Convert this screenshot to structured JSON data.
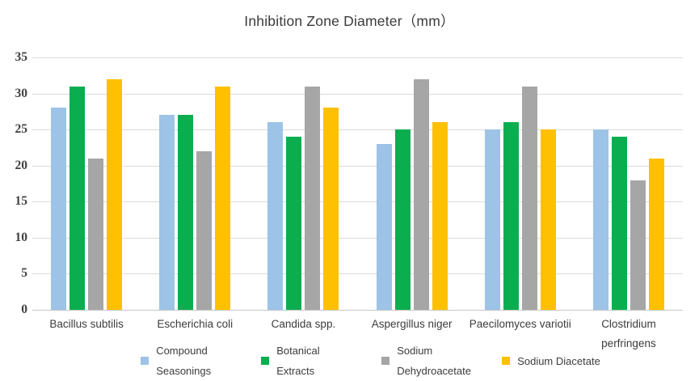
{
  "chart_data": {
    "type": "bar",
    "title": "Inhibition Zone Diameter（mm）",
    "categories": [
      "Bacillus subtilis",
      "Escherichia coli",
      "Candida spp.",
      "Aspergillus niger",
      "Paecilomyces variotii",
      "Clostridium perfringens"
    ],
    "series": [
      {
        "name": "Compound Seasonings",
        "color": "#9DC3E6",
        "values": [
          28,
          27,
          26,
          23,
          25,
          25
        ]
      },
      {
        "name": "Botanical Extracts",
        "color": "#0BAE4F",
        "values": [
          31,
          27,
          24,
          25,
          26,
          24
        ]
      },
      {
        "name": "Sodium Dehydroacetate",
        "color": "#A6A6A6",
        "values": [
          21,
          22,
          31,
          32,
          31,
          18
        ]
      },
      {
        "name": "Sodium Diacetate",
        "color": "#FFC000",
        "values": [
          32,
          31,
          28,
          26,
          25,
          21
        ]
      }
    ],
    "xlabel": "",
    "ylabel": "",
    "ylim": [
      0,
      35
    ],
    "yticks": [
      0,
      5,
      10,
      15,
      20,
      25,
      30,
      35
    ],
    "grid": true,
    "grid_color": "#dbdbdb",
    "axis_line_color": "#c6c6c6",
    "legend_position": "bottom"
  }
}
